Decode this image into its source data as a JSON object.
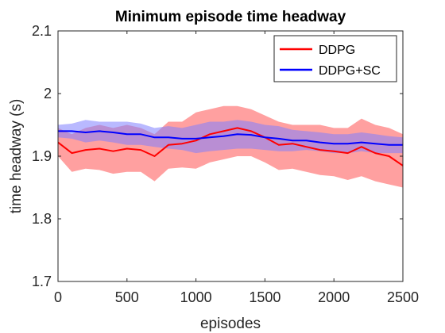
{
  "chart_data": {
    "type": "line",
    "title": "Minimum episode time headway",
    "xlabel": "episodes",
    "ylabel": "time headway (s)",
    "xlim": [
      0,
      2500
    ],
    "ylim": [
      1.7,
      2.1
    ],
    "xticks": [
      0,
      500,
      1000,
      1500,
      2000,
      2500
    ],
    "yticks": [
      1.7,
      1.8,
      1.9,
      2,
      2.1
    ],
    "xtick_labels": [
      "0",
      "500",
      "1000",
      "1500",
      "2000",
      "2500"
    ],
    "ytick_labels": [
      "1.7",
      "1.8",
      "1.9",
      "2",
      "2.1"
    ],
    "grid": false,
    "legend_position": "top-right",
    "series": [
      {
        "name": "DDPG",
        "color": "#ff0000",
        "band_color": "#ff8080",
        "x": [
          0,
          100,
          200,
          300,
          400,
          500,
          600,
          700,
          800,
          900,
          1000,
          1100,
          1200,
          1300,
          1400,
          1500,
          1600,
          1700,
          1800,
          1900,
          2000,
          2100,
          2200,
          2300,
          2400,
          2500
        ],
        "mean": [
          1.922,
          1.905,
          1.91,
          1.912,
          1.908,
          1.912,
          1.91,
          1.9,
          1.918,
          1.92,
          1.925,
          1.935,
          1.94,
          1.945,
          1.94,
          1.93,
          1.918,
          1.92,
          1.915,
          1.91,
          1.908,
          1.905,
          1.915,
          1.905,
          1.9,
          1.885
        ],
        "upper": [
          1.945,
          1.935,
          1.945,
          1.95,
          1.945,
          1.95,
          1.945,
          1.935,
          1.955,
          1.955,
          1.97,
          1.975,
          1.98,
          1.98,
          1.975,
          1.965,
          1.955,
          1.95,
          1.95,
          1.95,
          1.945,
          1.945,
          1.96,
          1.95,
          1.945,
          1.935
        ],
        "lower": [
          1.9,
          1.875,
          1.88,
          1.878,
          1.872,
          1.875,
          1.875,
          1.86,
          1.88,
          1.882,
          1.88,
          1.89,
          1.895,
          1.9,
          1.9,
          1.89,
          1.878,
          1.88,
          1.875,
          1.87,
          1.868,
          1.862,
          1.868,
          1.86,
          1.855,
          1.85
        ]
      },
      {
        "name": "DDPG+SC",
        "color": "#0000ff",
        "band_color": "#8080ff",
        "x": [
          0,
          100,
          200,
          300,
          400,
          500,
          600,
          700,
          800,
          900,
          1000,
          1100,
          1200,
          1300,
          1400,
          1500,
          1600,
          1700,
          1800,
          1900,
          2000,
          2100,
          2200,
          2300,
          2400,
          2500
        ],
        "mean": [
          1.94,
          1.94,
          1.938,
          1.94,
          1.938,
          1.935,
          1.935,
          1.93,
          1.93,
          1.928,
          1.928,
          1.93,
          1.932,
          1.935,
          1.934,
          1.93,
          1.928,
          1.925,
          1.925,
          1.922,
          1.92,
          1.92,
          1.922,
          1.92,
          1.918,
          1.918
        ],
        "upper": [
          1.95,
          1.952,
          1.958,
          1.955,
          1.955,
          1.955,
          1.952,
          1.945,
          1.948,
          1.945,
          1.95,
          1.955,
          1.955,
          1.958,
          1.955,
          1.95,
          1.948,
          1.942,
          1.94,
          1.938,
          1.935,
          1.935,
          1.938,
          1.935,
          1.932,
          1.93
        ],
        "lower": [
          1.93,
          1.928,
          1.922,
          1.925,
          1.922,
          1.918,
          1.918,
          1.915,
          1.912,
          1.91,
          1.905,
          1.908,
          1.91,
          1.912,
          1.912,
          1.91,
          1.908,
          1.908,
          1.91,
          1.908,
          1.905,
          1.905,
          1.908,
          1.905,
          1.905,
          1.905
        ]
      }
    ]
  }
}
